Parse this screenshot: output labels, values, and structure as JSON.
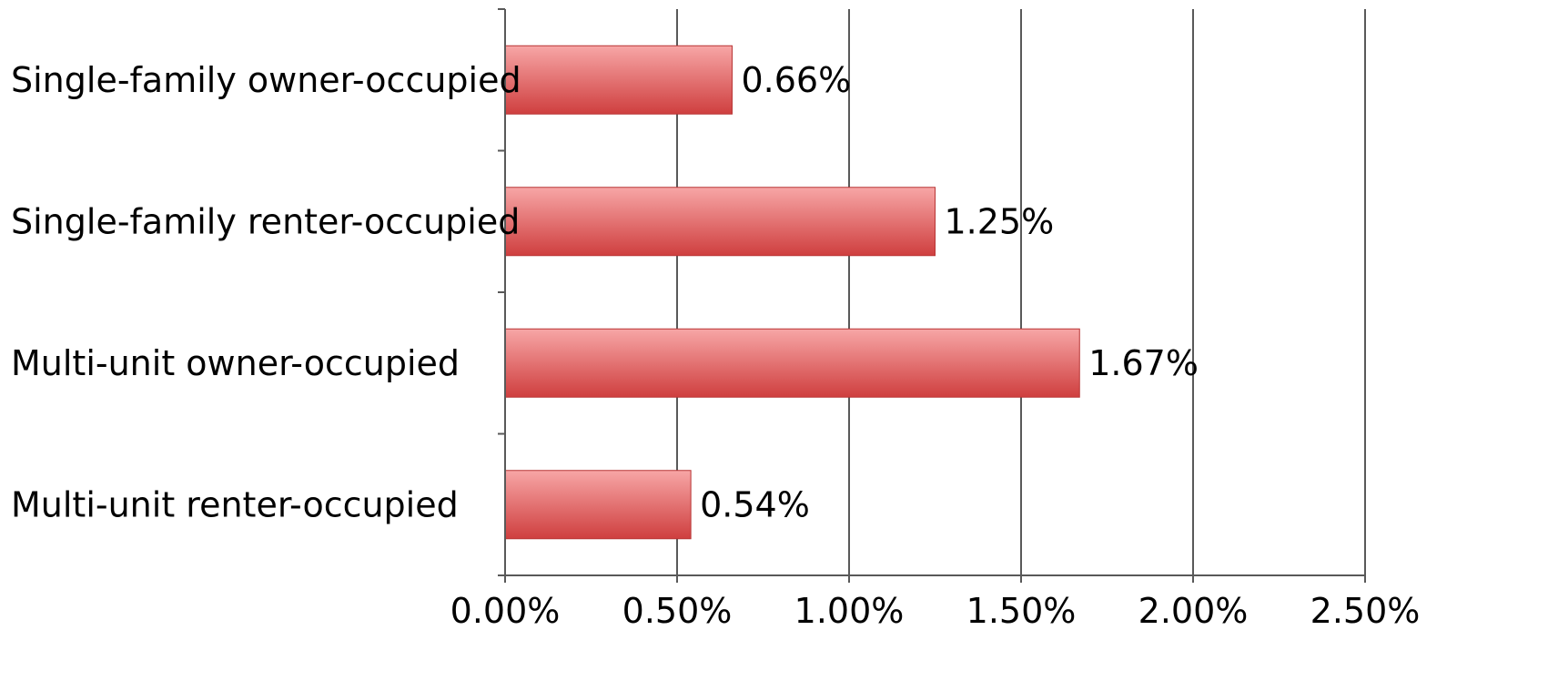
{
  "chart_data": {
    "type": "bar",
    "orientation": "horizontal",
    "title": "",
    "xlabel": "",
    "ylabel": "",
    "categories": [
      "Single-family owner-occupied",
      "Single-family renter-occupied",
      "Multi-unit owner-occupied",
      "Multi-unit renter-occupied"
    ],
    "values": [
      0.66,
      1.25,
      1.67,
      0.54
    ],
    "data_labels": [
      "0.66%",
      "1.25%",
      "1.67%",
      "0.54%"
    ],
    "xlim": [
      0,
      2.5
    ],
    "x_ticks": [
      0,
      0.5,
      1.0,
      1.5,
      2.0,
      2.5
    ],
    "x_tick_labels": [
      "0.00%",
      "0.50%",
      "1.00%",
      "1.50%",
      "2.00%",
      "2.50%"
    ],
    "grid": "vertical",
    "legend": "none",
    "colors": {
      "bar_top": "#f7a6a6",
      "bar_bottom": "#cf3f3f",
      "bar_edge": "#b83535",
      "gridline": "#595959",
      "axis": "#595959"
    }
  }
}
